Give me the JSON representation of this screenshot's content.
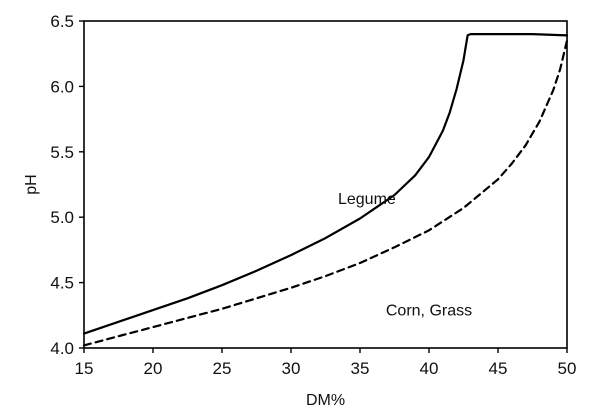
{
  "chart_data": {
    "type": "line",
    "xlabel": "DM%",
    "ylabel": "pH",
    "xlim": [
      15,
      50
    ],
    "ylim": [
      4.0,
      6.5
    ],
    "x_ticks": [
      "15",
      "20",
      "25",
      "30",
      "35",
      "40",
      "45",
      "50"
    ],
    "y_ticks": [
      "4.0",
      "4.5",
      "5.0",
      "5.5",
      "6.0",
      "6.5"
    ],
    "grid": false,
    "legend": "none",
    "series": [
      {
        "name": "Legume",
        "style": "solid",
        "color": "#000000",
        "x": [
          15,
          17.5,
          20,
          22.5,
          25,
          27.5,
          30,
          32.5,
          35,
          37.5,
          39,
          40,
          41,
          41.5,
          42,
          42.5,
          42.8,
          43,
          45,
          47.5,
          50
        ],
        "y": [
          4.11,
          4.2,
          4.29,
          4.38,
          4.48,
          4.59,
          4.71,
          4.84,
          4.99,
          5.17,
          5.32,
          5.46,
          5.66,
          5.8,
          5.98,
          6.2,
          6.39,
          6.4,
          6.4,
          6.4,
          6.39
        ]
      },
      {
        "name": "Corn, Grass",
        "style": "dashed",
        "color": "#000000",
        "x": [
          15,
          17.5,
          20,
          22.5,
          25,
          27.5,
          30,
          32.5,
          35,
          37.5,
          40,
          42.5,
          45,
          46,
          47,
          48,
          49,
          49.5,
          50
        ],
        "y": [
          4.02,
          4.09,
          4.16,
          4.23,
          4.3,
          4.38,
          4.46,
          4.55,
          4.65,
          4.77,
          4.9,
          5.07,
          5.29,
          5.41,
          5.55,
          5.73,
          5.97,
          6.13,
          6.35
        ]
      }
    ],
    "annotations": [
      {
        "text": "Legume",
        "x": 35.5,
        "y": 5.1
      },
      {
        "text": "Corn, Grass",
        "x": 40,
        "y": 4.25
      }
    ]
  }
}
